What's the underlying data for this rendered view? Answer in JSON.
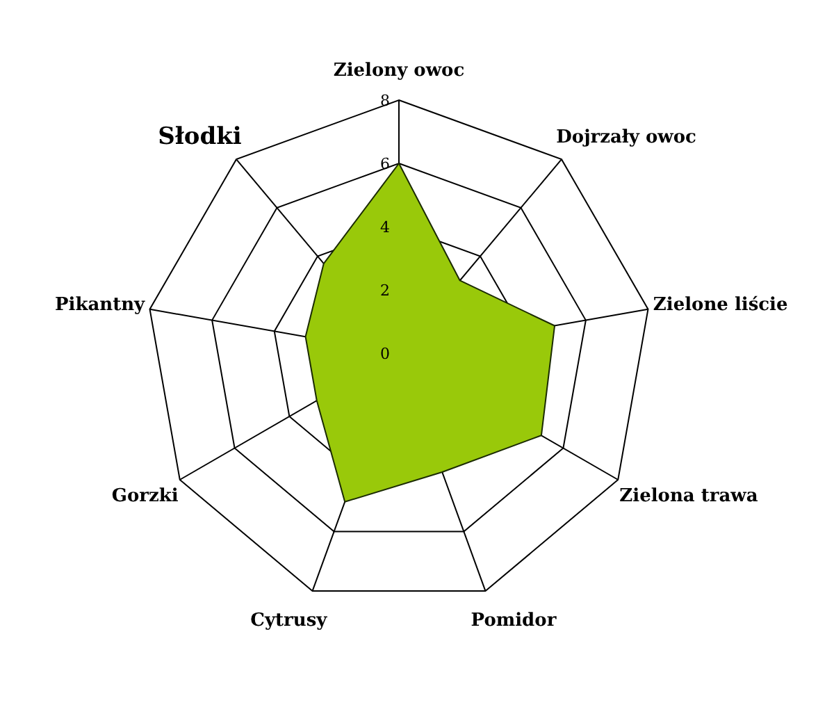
{
  "chart_data": {
    "type": "radar",
    "categories": [
      "Zielony owoc",
      "Dojrzały owoc",
      "Zielone liście",
      "Zielona trawa",
      "Pomidor",
      "Cytrusy",
      "Gorzki",
      "Pikantny",
      "Słodki"
    ],
    "series": [
      {
        "color": "#99c90a",
        "values": [
          6,
          3,
          5,
          5.2,
          4,
          5,
          3,
          3,
          3.7
        ]
      }
    ],
    "ylim": [
      0,
      8
    ],
    "yticks": [
      0,
      2,
      4,
      6,
      8
    ]
  }
}
